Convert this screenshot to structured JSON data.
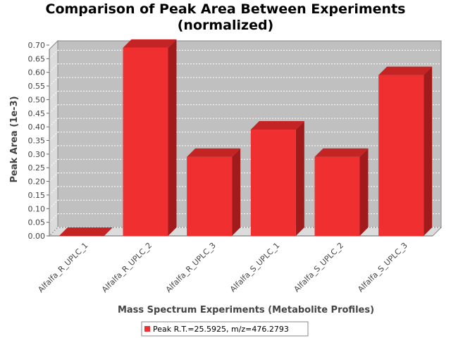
{
  "chart_data": {
    "type": "bar",
    "title_line1": "Comparison of Peak Area Between Experiments",
    "title_line2": "(normalized)",
    "xlabel": "Mass Spectrum Experiments (Metabolite Profiles)",
    "ylabel": "Peak Area (1e-3)",
    "categories": [
      "Alfalfa_R_UPLC_1",
      "Alfalfa_R_UPLC_2",
      "Alfalfa_R_UPLC_3",
      "Alfalfa_S_UPLC_1",
      "Alfalfa_S_UPLC_2",
      "Alfalfa_S_UPLC_3"
    ],
    "series": [
      {
        "name": "Peak R.T.=25.5925, m/z=476.2793",
        "values": [
          0.0,
          0.69,
          0.29,
          0.39,
          0.29,
          0.59
        ]
      }
    ],
    "ylim": [
      0,
      0.7
    ],
    "yticks": [
      "0.00",
      "0.05",
      "0.10",
      "0.15",
      "0.20",
      "0.25",
      "0.30",
      "0.35",
      "0.40",
      "0.45",
      "0.50",
      "0.55",
      "0.60",
      "0.65",
      "0.70"
    ],
    "grid": true,
    "legend_position": "bottom",
    "colors": {
      "bar_front": "#f03030",
      "bar_top": "#c42424",
      "bar_side": "#a01c1c",
      "plot_bg": "#c0c0c0",
      "plot_wall": "#dcdcdc"
    }
  }
}
